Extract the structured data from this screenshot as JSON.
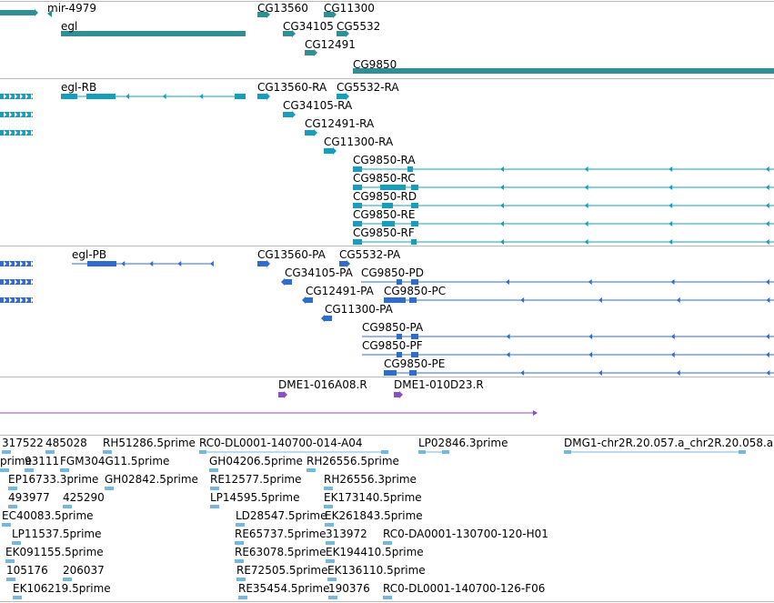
{
  "colors": {
    "gene": "#2f8f95",
    "rna": "#159fbd",
    "protein": "#2f6ccf",
    "clone": "#8a4fc4",
    "est": "#74b7e3",
    "separator": "#b8b8b8"
  },
  "tracks": [
    {
      "name": "gene-track",
      "color": "gene",
      "features": [
        {
          "label": "mir-4979",
          "icon": "left-arrow"
        },
        {
          "label": "egl"
        },
        {
          "label": "CG13560"
        },
        {
          "label": "CG11300"
        },
        {
          "label": "CG34105"
        },
        {
          "label": "CG5532"
        },
        {
          "label": "CG12491"
        },
        {
          "label": "CG9850"
        }
      ]
    },
    {
      "name": "mrna-track",
      "color": "rna",
      "features": [
        {
          "label": "egl-RB"
        },
        {
          "label": "CG13560-RA"
        },
        {
          "label": "CG5532-RA"
        },
        {
          "label": "CG34105-RA"
        },
        {
          "label": "CG12491-RA"
        },
        {
          "label": "CG11300-RA"
        },
        {
          "label": "CG9850-RA"
        },
        {
          "label": "CG9850-RC"
        },
        {
          "label": "CG9850-RD"
        },
        {
          "label": "CG9850-RE"
        },
        {
          "label": "CG9850-RF"
        }
      ]
    },
    {
      "name": "protein-track",
      "color": "protein",
      "features": [
        {
          "label": "egl-PB"
        },
        {
          "label": "CG13560-PA"
        },
        {
          "label": "CG5532-PA"
        },
        {
          "label": "CG34105-PA"
        },
        {
          "label": "CG9850-PD"
        },
        {
          "label": "CG12491-PA"
        },
        {
          "label": "CG9850-PC"
        },
        {
          "label": "CG11300-PA"
        },
        {
          "label": "CG9850-PA"
        },
        {
          "label": "CG9850-PF"
        },
        {
          "label": "CG9850-PE"
        }
      ]
    },
    {
      "name": "clone-track",
      "color": "clone",
      "features": [
        {
          "label": "DME1-016A08.R"
        },
        {
          "label": "DME1-010D23.R"
        }
      ]
    },
    {
      "name": "est-track",
      "color": "est",
      "features": [
        {
          "label": "317522"
        },
        {
          "label": "485028"
        },
        {
          "label": "RH51286.5prime"
        },
        {
          "label": "RC0-DL0001-140700-014-A04"
        },
        {
          "label": "LP02846.3prime"
        },
        {
          "label": "DMG1-chr2R.20.057.a_chr2R.20.058.a"
        },
        {
          "label": "prime"
        },
        {
          "label": "93111"
        },
        {
          "label": "FGM304G11.5prime"
        },
        {
          "label": "GH04206.5prime"
        },
        {
          "label": "RH26556.5prime"
        },
        {
          "label": "EP16733.3prime"
        },
        {
          "label": "GH02842.5prime"
        },
        {
          "label": "RE12577.5prime"
        },
        {
          "label": "RH26556.3prime"
        },
        {
          "label": "493977"
        },
        {
          "label": "425290"
        },
        {
          "label": "LP14595.5prime"
        },
        {
          "label": "EK173140.5prime"
        },
        {
          "label": "EC40083.5prime"
        },
        {
          "label": "LD28547.5prime"
        },
        {
          "label": "EK261843.5prime"
        },
        {
          "label": "LP11537.5prime"
        },
        {
          "label": "RE65737.5prime"
        },
        {
          "label": "313972"
        },
        {
          "label": "RC0-DA0001-130700-120-H01"
        },
        {
          "label": "EK091155.5prime"
        },
        {
          "label": "RE63078.5prime"
        },
        {
          "label": "EK194410.5prime"
        },
        {
          "label": "105176"
        },
        {
          "label": "206037"
        },
        {
          "label": "RE72505.5prime"
        },
        {
          "label": "EK136110.5prime"
        },
        {
          "label": "EK106219.5prime"
        },
        {
          "label": "RE35454.5prime"
        },
        {
          "label": "190376"
        },
        {
          "label": "RC0-DL0001-140700-126-F06"
        }
      ]
    }
  ]
}
